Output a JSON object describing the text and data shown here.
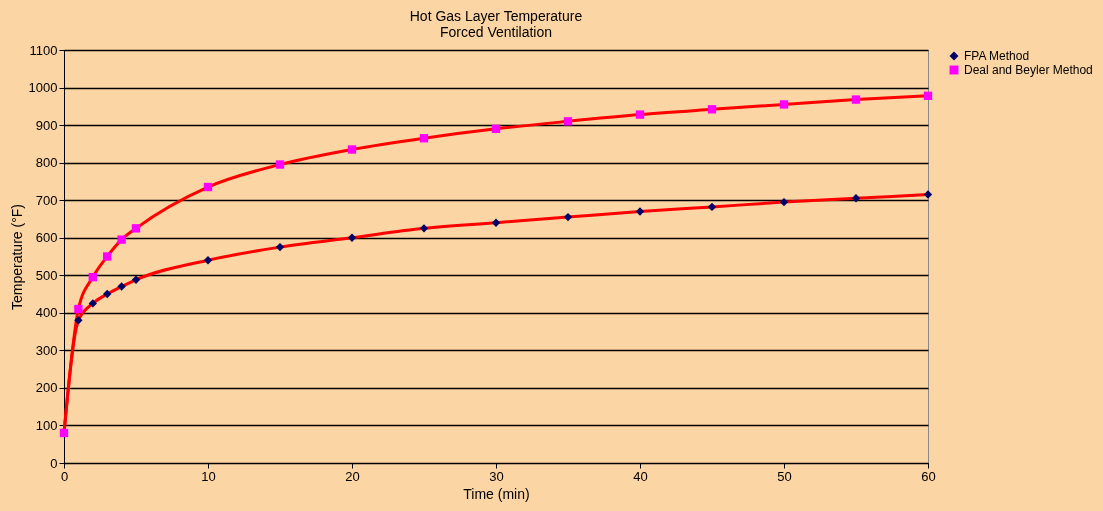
{
  "chart_data": {
    "type": "line",
    "title": [
      "Hot Gas Layer Temperature",
      "Forced Ventilation"
    ],
    "xlabel": "Time (min)",
    "ylabel": "Temperature (°F)",
    "x": [
      0,
      1,
      2,
      3,
      4,
      5,
      10,
      15,
      20,
      25,
      30,
      35,
      40,
      45,
      50,
      55,
      60
    ],
    "series": [
      {
        "name": "FPA Method",
        "color": "#000066",
        "marker": "diamond",
        "values": [
          80,
          380,
          425,
          450,
          470,
          488,
          540,
          575,
          600,
          625,
          640,
          655,
          670,
          682,
          695,
          705,
          715
        ]
      },
      {
        "name": "Deal and Beyler Method",
        "color": "#ff00ff",
        "marker": "square",
        "values": [
          80,
          410,
          495,
          550,
          595,
          625,
          735,
          795,
          835,
          865,
          890,
          910,
          928,
          942,
          955,
          968,
          978
        ]
      }
    ],
    "xlim": [
      0,
      60
    ],
    "xticks": [
      0,
      10,
      20,
      30,
      40,
      50,
      60
    ],
    "ylim": [
      0,
      1100
    ],
    "yticks": [
      0,
      100,
      200,
      300,
      400,
      500,
      600,
      700,
      800,
      900,
      1000,
      1100
    ],
    "grid": "y",
    "legend": "top right",
    "line_style": "solid"
  }
}
